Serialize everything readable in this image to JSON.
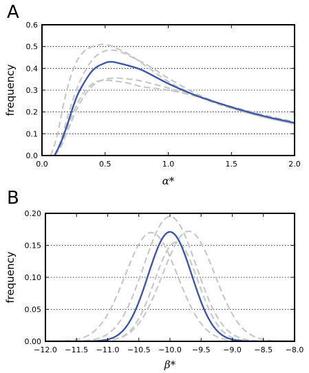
{
  "chart_data": [
    {
      "panel_label": "A",
      "type": "line",
      "xlabel": "α*",
      "ylabel": "frequency",
      "xlim": [
        0.0,
        2.0
      ],
      "ylim": [
        0.0,
        0.6
      ],
      "xticks": [
        "0.0",
        "0.5",
        "1.0",
        "1.5",
        "2.0"
      ],
      "yticks": [
        "0.0",
        "0.1",
        "0.2",
        "0.3",
        "0.4",
        "0.5",
        "0.6"
      ],
      "grid": "horizontal dotted",
      "legend": "none",
      "series": [
        {
          "style": "solid",
          "color": "#3d56a6",
          "x": [
            0.1,
            0.15,
            0.2,
            0.25,
            0.3,
            0.4,
            0.5,
            0.55,
            0.6,
            0.7,
            0.8,
            1.0,
            1.2,
            1.4,
            1.6,
            1.8,
            2.0
          ],
          "y": [
            0.0,
            0.06,
            0.14,
            0.23,
            0.3,
            0.39,
            0.425,
            0.43,
            0.425,
            0.41,
            0.39,
            0.33,
            0.28,
            0.24,
            0.205,
            0.175,
            0.15
          ]
        },
        {
          "style": "dashed",
          "color": "#c8c8c8",
          "x": [
            0.07,
            0.12,
            0.18,
            0.25,
            0.32,
            0.4,
            0.5,
            0.6,
            0.7,
            0.85,
            1.0,
            1.2,
            1.4,
            1.6,
            1.8,
            2.0
          ],
          "y": [
            0.0,
            0.09,
            0.26,
            0.4,
            0.47,
            0.5,
            0.51,
            0.49,
            0.46,
            0.4,
            0.34,
            0.28,
            0.235,
            0.2,
            0.17,
            0.145
          ]
        },
        {
          "style": "dashed",
          "color": "#c8c8c8",
          "x": [
            0.1,
            0.15,
            0.22,
            0.3,
            0.4,
            0.5,
            0.6,
            0.7,
            0.85,
            1.0,
            1.2,
            1.4,
            1.6,
            1.8,
            2.0
          ],
          "y": [
            0.0,
            0.07,
            0.21,
            0.34,
            0.44,
            0.48,
            0.48,
            0.455,
            0.41,
            0.355,
            0.29,
            0.24,
            0.2,
            0.17,
            0.145
          ]
        },
        {
          "style": "dashed",
          "color": "#c8c8c8",
          "x": [
            0.1,
            0.15,
            0.2,
            0.3,
            0.4,
            0.5,
            0.6,
            0.7,
            0.8,
            1.0,
            1.2,
            1.4,
            1.6,
            1.8,
            2.0
          ],
          "y": [
            0.0,
            0.04,
            0.11,
            0.24,
            0.32,
            0.35,
            0.355,
            0.35,
            0.34,
            0.31,
            0.275,
            0.24,
            0.205,
            0.175,
            0.15
          ]
        },
        {
          "style": "dashed",
          "color": "#c8c8c8",
          "x": [
            0.1,
            0.15,
            0.2,
            0.3,
            0.4,
            0.5,
            0.6,
            0.7,
            0.8,
            1.0,
            1.2,
            1.4,
            1.6,
            1.8,
            2.0
          ],
          "y": [
            0.0,
            0.05,
            0.13,
            0.26,
            0.33,
            0.345,
            0.34,
            0.33,
            0.315,
            0.3,
            0.275,
            0.24,
            0.21,
            0.18,
            0.155
          ]
        }
      ]
    },
    {
      "panel_label": "B",
      "type": "line",
      "xlabel": "β*",
      "ylabel": "frequency",
      "xlim": [
        -12.0,
        -8.0
      ],
      "ylim": [
        0.0,
        0.2
      ],
      "xticks": [
        "−12.0",
        "−11.5",
        "−11.0",
        "−10.5",
        "−10.0",
        "−9.5",
        "−9.0",
        "−8.5",
        "−8.0"
      ],
      "yticks": [
        "0.00",
        "0.05",
        "0.10",
        "0.15",
        "0.20"
      ],
      "grid": "horizontal dotted",
      "legend": "none",
      "series": [
        {
          "style": "solid",
          "color": "#3d56a6",
          "distribution": "gaussian",
          "mean": -10.0,
          "sd": 0.35,
          "peak": 0.171
        },
        {
          "style": "dashed",
          "color": "#c8c8c8",
          "distribution": "gaussian",
          "mean": -10.0,
          "sd": 0.42,
          "peak": 0.195
        },
        {
          "style": "dashed",
          "color": "#c8c8c8",
          "distribution": "gaussian",
          "mean": -10.3,
          "sd": 0.42,
          "peak": 0.17
        },
        {
          "style": "dashed",
          "color": "#c8c8c8",
          "distribution": "gaussian",
          "mean": -9.7,
          "sd": 0.42,
          "peak": 0.172
        },
        {
          "style": "dashed",
          "color": "#c8c8c8",
          "distribution": "gaussian",
          "mean": -9.9,
          "sd": 0.35,
          "peak": 0.155
        }
      ]
    }
  ]
}
